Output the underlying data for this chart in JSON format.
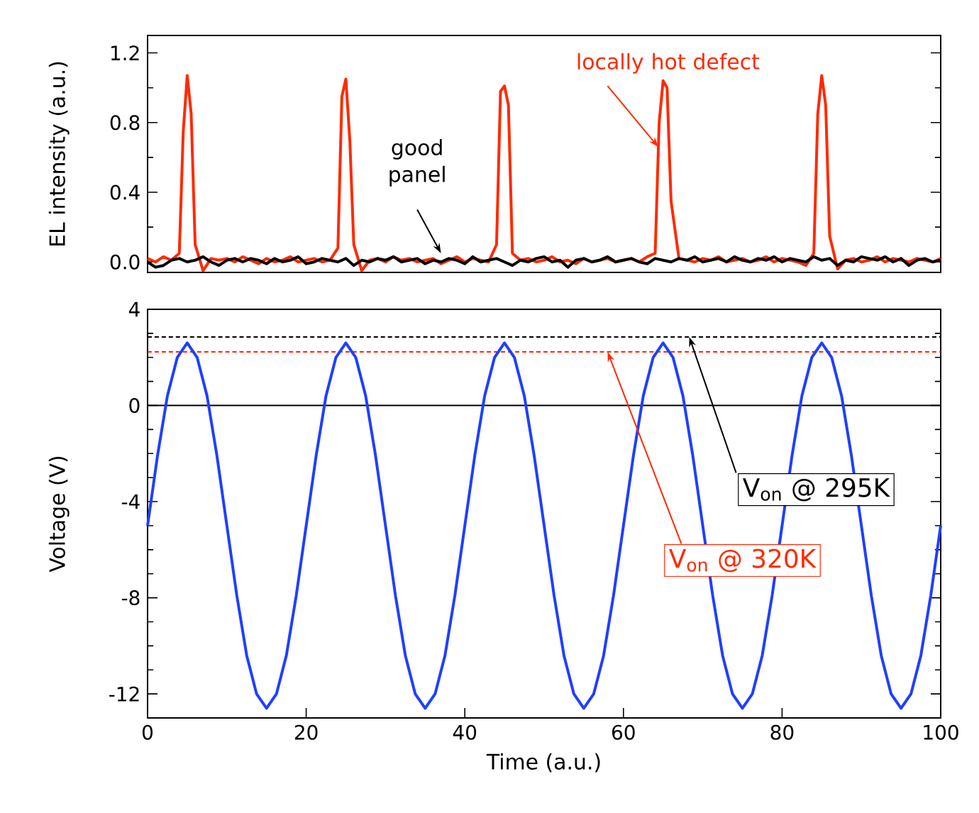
{
  "chart_data": [
    {
      "type": "line",
      "ylabel": "EL intensity (a.u.)",
      "xlim": [
        0,
        100
      ],
      "ylim": [
        -0.06,
        1.3
      ],
      "yticks": [
        {
          "value": 0,
          "label": "0.0"
        },
        {
          "value": 0.4,
          "label": "0.4"
        },
        {
          "value": 0.8,
          "label": "0.8"
        },
        {
          "value": 1.2,
          "label": "1.2"
        }
      ],
      "tick_labels": "y",
      "marker": "none",
      "line_style": "solid",
      "x": [
        0,
        1,
        2,
        3,
        4,
        5,
        6,
        7,
        8,
        9,
        10,
        11,
        12,
        13,
        14,
        15,
        16,
        17,
        18,
        19,
        20,
        21,
        22,
        23,
        24,
        25,
        26,
        27,
        28,
        29,
        30,
        31,
        32,
        33,
        34,
        35,
        36,
        37,
        38,
        39,
        40,
        41,
        42,
        43,
        44,
        45,
        46,
        47,
        48,
        49,
        50,
        51,
        52,
        53,
        54,
        55,
        56,
        57,
        58,
        59,
        60,
        61,
        62,
        63,
        64,
        65,
        66,
        67,
        68,
        69,
        70,
        71,
        72,
        73,
        74,
        75,
        76,
        77,
        78,
        79,
        80,
        81,
        82,
        83,
        84,
        85,
        86,
        87,
        88,
        89,
        90,
        91,
        92,
        93,
        94,
        95,
        96,
        97,
        98,
        99,
        100
      ],
      "series": [
        {
          "color": "#ff2a00",
          "x": [
            0,
            1,
            2,
            3,
            4,
            4.5,
            5,
            5.5,
            6,
            7,
            8,
            9,
            10,
            11,
            12,
            13,
            14,
            15,
            16,
            17,
            18,
            19,
            20,
            21,
            22,
            23,
            24,
            24.5,
            25,
            25.5,
            26,
            27,
            28,
            29,
            30,
            31,
            32,
            33,
            34,
            35,
            36,
            37,
            38,
            39,
            40,
            41,
            42,
            43,
            44,
            44.5,
            45,
            45.5,
            46,
            47,
            48,
            49,
            50,
            51,
            52,
            53,
            54,
            55,
            56,
            57,
            58,
            59,
            60,
            61,
            62,
            63,
            64,
            64.5,
            65,
            65.5,
            66,
            67,
            68,
            69,
            70,
            71,
            72,
            73,
            74,
            75,
            76,
            77,
            78,
            79,
            80,
            81,
            82,
            83,
            84,
            84.5,
            85,
            85.5,
            86,
            87,
            88,
            89,
            90,
            91,
            92,
            93,
            94,
            95,
            96,
            97,
            98,
            99,
            100
          ],
          "values": [
            0.02,
            0.0,
            0.03,
            0.01,
            0.05,
            0.75,
            1.07,
            0.85,
            0.1,
            -0.05,
            0.02,
            0.01,
            0.02,
            0.0,
            0.03,
            0.01,
            -0.01,
            0.02,
            0.0,
            0.01,
            0.03,
            0.0,
            0.01,
            0.02,
            0.0,
            0.01,
            0.08,
            0.95,
            1.05,
            0.7,
            0.1,
            -0.05,
            0.01,
            0.02,
            0.0,
            0.03,
            0.01,
            0.02,
            0.0,
            0.01,
            0.02,
            -0.01,
            0.01,
            0.03,
            0.0,
            0.02,
            0.01,
            0.0,
            0.1,
            0.98,
            1.01,
            0.9,
            0.05,
            0.01,
            0.02,
            0.0,
            0.01,
            0.03,
            0.0,
            0.01,
            -0.01,
            0.02,
            0.0,
            0.01,
            0.02,
            0.0,
            0.01,
            0.02,
            0.0,
            0.03,
            0.05,
            0.8,
            1.04,
            1.0,
            0.35,
            0.02,
            0.01,
            0.0,
            0.02,
            0.01,
            0.03,
            0.0,
            0.01,
            0.02,
            0.0,
            0.01,
            0.03,
            0.0,
            0.02,
            0.01,
            0.0,
            -0.02,
            0.05,
            0.85,
            1.07,
            0.9,
            0.15,
            -0.04,
            0.01,
            0.02,
            0.0,
            0.01,
            0.03,
            0.0,
            0.02,
            0.01,
            0.0,
            0.02,
            0.01,
            0.0,
            0.02
          ]
        },
        {
          "color": "#000000",
          "values": [
            0.0,
            -0.03,
            -0.02,
            0.01,
            0.02,
            0.0,
            0.01,
            0.03,
            0.0,
            -0.02,
            0.01,
            0.02,
            0.0,
            0.02,
            0.01,
            -0.01,
            0.02,
            0.0,
            0.01,
            0.03,
            -0.01,
            0.0,
            0.02,
            0.01,
            0.0,
            0.02,
            -0.02,
            0.01,
            0.0,
            0.02,
            0.01,
            0.03,
            0.0,
            0.01,
            0.02,
            -0.01,
            0.01,
            0.0,
            0.02,
            0.01,
            -0.01,
            0.03,
            0.0,
            0.01,
            0.02,
            0.0,
            -0.02,
            0.01,
            0.0,
            0.02,
            0.03,
            0.0,
            0.01,
            -0.03,
            0.01,
            0.02,
            0.0,
            0.01,
            0.03,
            0.0,
            0.01,
            0.02,
            0.0,
            -0.01,
            0.02,
            0.01,
            0.0,
            0.02,
            0.01,
            0.03,
            0.0,
            0.01,
            0.02,
            0.0,
            0.03,
            0.01,
            0.0,
            0.02,
            0.01,
            0.03,
            0.0,
            0.02,
            0.01,
            0.0,
            0.03,
            0.01,
            0.02,
            -0.02,
            0.01,
            0.0,
            0.03,
            0.02,
            0.01,
            0.03,
            0.0,
            0.02,
            -0.02,
            0.01,
            0.02,
            0.0,
            0.01
          ]
        }
      ],
      "annotations": [
        {
          "text": "locally hot defect",
          "x": 64.4,
          "y": 0.66
        },
        {
          "text": "good panel",
          "x": 37,
          "y": 0.05
        }
      ]
    },
    {
      "type": "line",
      "xlabel": "Time (a.u.)",
      "ylabel": "Voltage (V)",
      "xlim": [
        0,
        100
      ],
      "ylim": [
        -13,
        4
      ],
      "xticks": [
        0,
        20,
        40,
        60,
        80,
        100
      ],
      "yticks": [
        -12,
        -8,
        -4,
        0,
        4
      ],
      "marker": "none",
      "line_style": "solid",
      "x": [
        0,
        1.25,
        2.5,
        3.75,
        5,
        6.25,
        7.5,
        8.75,
        10,
        11.25,
        12.5,
        13.75,
        15,
        16.25,
        17.5,
        18.75,
        20,
        21.25,
        22.5,
        23.75,
        25,
        26.25,
        27.5,
        28.75,
        30,
        31.25,
        32.5,
        33.75,
        35,
        36.25,
        37.5,
        38.75,
        40,
        41.25,
        42.5,
        43.75,
        45,
        46.25,
        47.5,
        48.75,
        50,
        51.25,
        52.5,
        53.75,
        55,
        56.25,
        57.5,
        58.75,
        60,
        61.25,
        62.5,
        63.75,
        65,
        66.25,
        67.5,
        68.75,
        70,
        71.25,
        72.5,
        73.75,
        75,
        76.25,
        77.5,
        78.75,
        80,
        81.25,
        82.5,
        83.75,
        85,
        86.25,
        87.5,
        88.75,
        90,
        91.25,
        92.5,
        93.75,
        95,
        96.25,
        97.5,
        98.75,
        100
      ],
      "series": [
        {
          "color": "#1f3fff",
          "values": [
            -5,
            -2.1,
            0.4,
            2.0,
            2.6,
            2.0,
            0.4,
            -2.1,
            -5,
            -7.9,
            -10.4,
            -12.0,
            -12.6,
            -12.0,
            -10.4,
            -7.9,
            -5,
            -2.1,
            0.4,
            2.0,
            2.6,
            2.0,
            0.4,
            -2.1,
            -5,
            -7.9,
            -10.4,
            -12.0,
            -12.6,
            -12.0,
            -10.4,
            -7.9,
            -5,
            -2.1,
            0.4,
            2.0,
            2.6,
            2.0,
            0.4,
            -2.1,
            -5,
            -7.9,
            -10.4,
            -12.0,
            -12.6,
            -12.0,
            -10.4,
            -7.9,
            -5,
            -2.1,
            0.4,
            2.0,
            2.6,
            2.0,
            0.4,
            -2.1,
            -5,
            -7.9,
            -10.4,
            -12.0,
            -12.6,
            -12.0,
            -10.4,
            -7.9,
            -5,
            -2.1,
            0.4,
            2.0,
            2.6,
            2.0,
            0.4,
            -2.1,
            -5,
            -7.9,
            -10.4,
            -12.0,
            -12.6,
            -12.0,
            -10.4,
            -7.9,
            -5
          ]
        }
      ],
      "ref_lines": [
        {
          "axis": "y",
          "value": 0,
          "color": "#000000",
          "line_style": "solid"
        },
        {
          "axis": "y",
          "value": 2.85,
          "color": "#000000",
          "line_style": "dashed",
          "label": "V$_{on}$ @ 295K"
        },
        {
          "axis": "y",
          "value": 2.23,
          "color": "#ff2a00",
          "line_style": "dashed",
          "label": "V$_{on}$ @ 320K"
        }
      ]
    }
  ]
}
